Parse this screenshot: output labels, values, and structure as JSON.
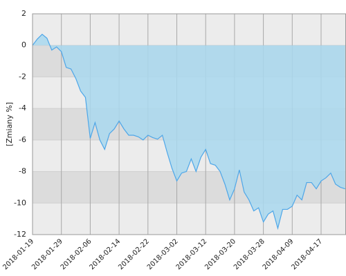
{
  "chart_data": {
    "type": "area",
    "ylabel": "[Zmiany %]",
    "categories": [
      "2018-01-19",
      null,
      null,
      null,
      null,
      null,
      "2018-01-29",
      null,
      null,
      null,
      null,
      null,
      "2018-02-06",
      null,
      null,
      null,
      null,
      null,
      "2018-02-14",
      null,
      null,
      null,
      null,
      null,
      "2018-02-22",
      null,
      null,
      null,
      null,
      null,
      "2018-03-02",
      null,
      null,
      null,
      null,
      null,
      "2018-03-12",
      null,
      null,
      null,
      null,
      null,
      "2018-03-20",
      null,
      null,
      null,
      null,
      null,
      "2018-03-28",
      null,
      null,
      null,
      null,
      null,
      "2018-04-09",
      null,
      null,
      null,
      null,
      null,
      "2018-04-17",
      null,
      null,
      null,
      null,
      null
    ],
    "values": [
      0,
      0.4,
      0.7,
      0.45,
      -0.3,
      -0.1,
      -0.4,
      -1.4,
      -1.5,
      -2.1,
      -2.9,
      -3.3,
      -5.9,
      -4.9,
      -6.0,
      -6.6,
      -5.6,
      -5.3,
      -4.8,
      -5.3,
      -5.7,
      -5.7,
      -5.8,
      -6.0,
      -5.7,
      -5.85,
      -5.95,
      -5.7,
      -6.8,
      -7.8,
      -8.6,
      -8.1,
      -8.0,
      -7.2,
      -8.0,
      -7.1,
      -6.6,
      -7.5,
      -7.6,
      -8.0,
      -8.8,
      -9.8,
      -9.1,
      -7.9,
      -9.3,
      -9.8,
      -10.5,
      -10.3,
      -11.2,
      -10.7,
      -10.5,
      -11.6,
      -10.4,
      -10.4,
      -10.2,
      -9.5,
      -9.8,
      -8.7,
      -8.7,
      -9.1,
      -8.6,
      -8.4,
      -8.1,
      -8.8,
      -9.0,
      -9.1
    ],
    "color": "#4da6e8",
    "fill": "#a9d8ef",
    "ylim": [
      -12,
      2
    ],
    "yticks": [
      -12,
      -10,
      -8,
      -6,
      -4,
      -2,
      0,
      2
    ],
    "grid": true
  }
}
